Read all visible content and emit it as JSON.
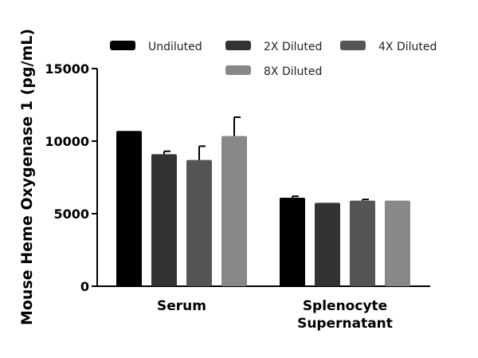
{
  "chart_data": {
    "type": "bar",
    "title": "",
    "xlabel": "",
    "ylabel": "Mouse Heme Oxygenase 1 (pg/mL)",
    "ylim": [
      0,
      15000
    ],
    "yticks": [
      0,
      5000,
      10000,
      15000
    ],
    "ytick_labels": [
      "0",
      "5000",
      "10000",
      "15000"
    ],
    "categories": [
      "Serum",
      "Splenocyte\nSupernatant"
    ],
    "category_lines": [
      [
        "Serum"
      ],
      [
        "Splenocyte",
        "Supernatant"
      ]
    ],
    "legend_position": "top",
    "grid": false,
    "series": [
      {
        "name": "Undiluted",
        "values": [
          10700,
          6100
        ],
        "errors": [
          0,
          100
        ],
        "color": "#000000"
      },
      {
        "name": "2X Diluted",
        "values": [
          9100,
          5750
        ],
        "errors": [
          200,
          0
        ],
        "color": "#333333"
      },
      {
        "name": "4X Diluted",
        "values": [
          8700,
          5900
        ],
        "errors": [
          950,
          80
        ],
        "color": "#555555"
      },
      {
        "name": "8X Diluted",
        "values": [
          10350,
          5900
        ],
        "errors": [
          1300,
          0
        ],
        "color": "#888888"
      }
    ]
  }
}
